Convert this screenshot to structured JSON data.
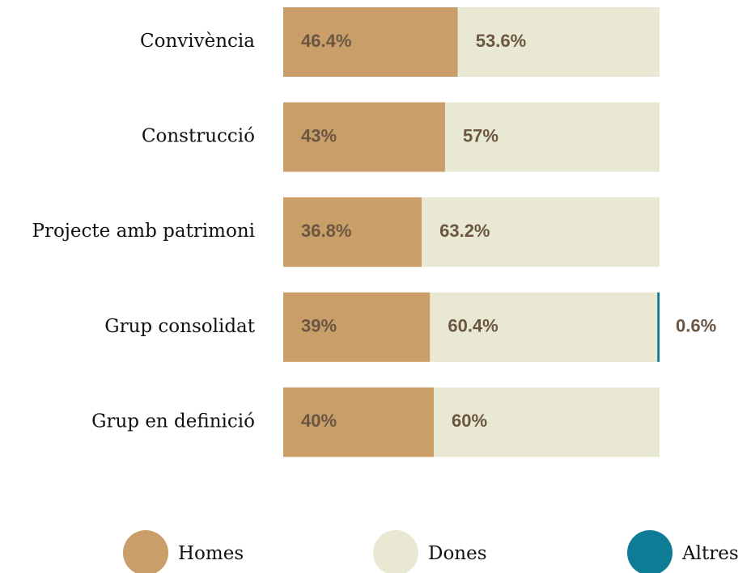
{
  "chart_data": {
    "type": "stacked_bar_horizontal",
    "categories": [
      "Convivència",
      "Construcció",
      "Projecte amb patrimoni",
      "Grup consolidat",
      "Grup en definició"
    ],
    "series": [
      {
        "name": "Homes",
        "color": "#c99e68",
        "values": [
          46.4,
          43,
          36.8,
          39,
          40
        ],
        "value_labels": [
          "46.4%",
          "43%",
          "36.8%",
          "39%",
          "40%"
        ]
      },
      {
        "name": "Dones",
        "color": "#e9e8d2",
        "values": [
          53.6,
          57,
          63.2,
          60.4,
          60
        ],
        "value_labels": [
          "53.6%",
          "57%",
          "63.2%",
          "60.4%",
          "60%"
        ]
      },
      {
        "name": "Altres",
        "color": "#0e7c96",
        "values": [
          null,
          null,
          null,
          0.6,
          null
        ],
        "value_labels": [
          null,
          null,
          null,
          "0.6%",
          null
        ]
      }
    ],
    "xlim": [
      0,
      100
    ]
  }
}
